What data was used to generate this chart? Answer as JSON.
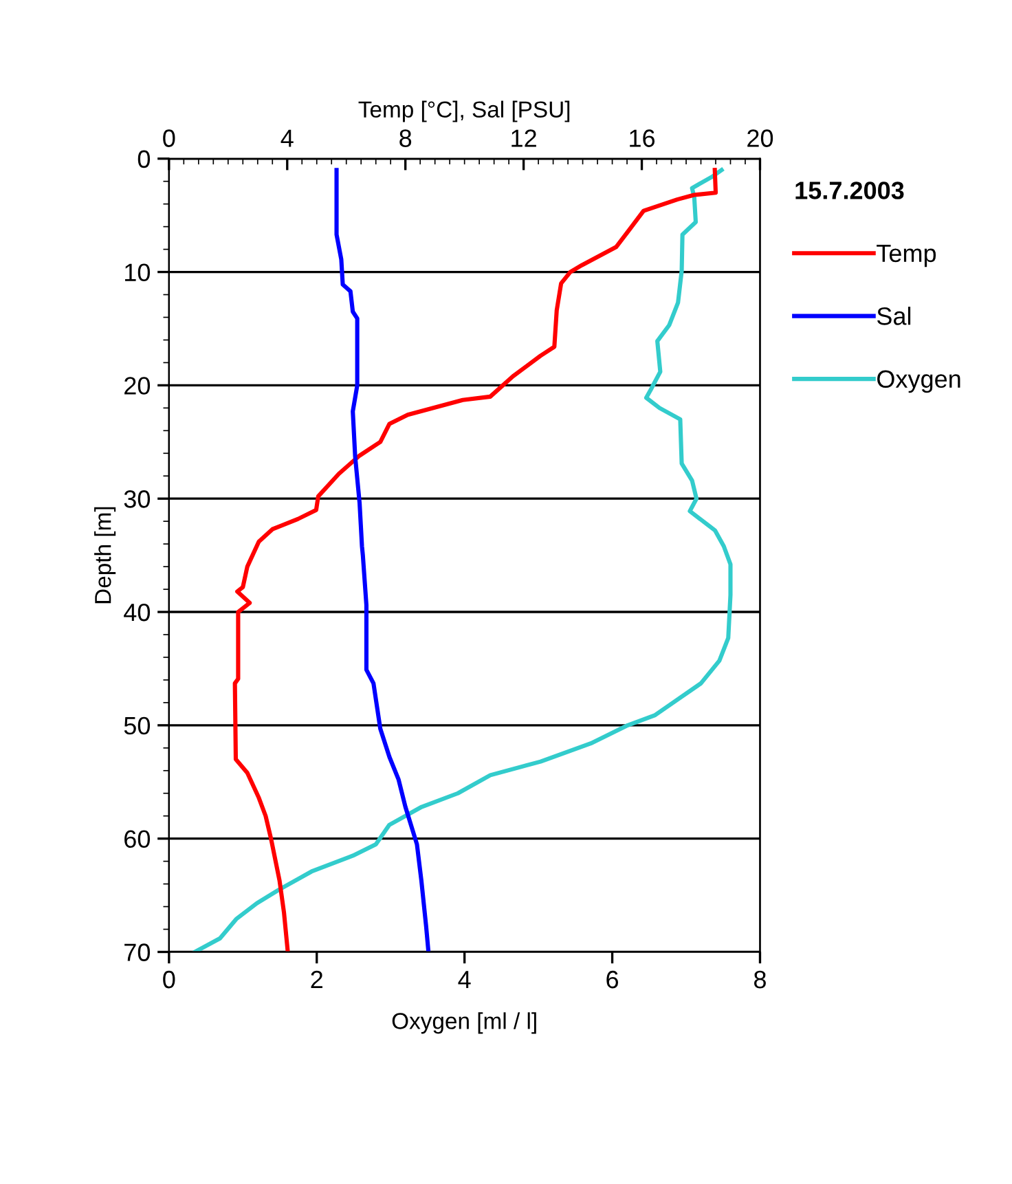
{
  "chart_data": {
    "type": "line",
    "xlabel": "Oxygen [ml / l]",
    "x2label": "Temp [°C], Sal [PSU]",
    "ylabel": "Depth [m]",
    "legend_title": "15.7.2003",
    "legend": "right",
    "grid": "y",
    "xlim": [
      0,
      8
    ],
    "xticks": [
      0,
      2,
      4,
      6,
      8
    ],
    "x2lim": [
      0,
      20
    ],
    "x2ticks": [
      0,
      4,
      8,
      12,
      16,
      20
    ],
    "ylim": [
      70,
      0
    ],
    "yticks": [
      0,
      10,
      20,
      30,
      40,
      50,
      60,
      70
    ],
    "series": [
      {
        "name": "Temp",
        "color": "#ff0000",
        "axis": "x2",
        "x": [
          18.47,
          18.5,
          17.77,
          17.2,
          16.06,
          15.6,
          15.13,
          13.97,
          13.58,
          13.27,
          13.12,
          13.04,
          12.57,
          11.64,
          10.87,
          9.94,
          8.08,
          7.46,
          7.15,
          6.45,
          5.75,
          5.05,
          4.98,
          4.36,
          3.5,
          3.04,
          2.65,
          2.5,
          2.31,
          2.73,
          2.34,
          2.34,
          2.23,
          2.26,
          2.65,
          3.04,
          3.27,
          3.46,
          3.74,
          3.89,
          4.02
        ],
        "values": [
          1.0,
          3.0,
          3.2,
          3.6,
          4.6,
          6.2,
          7.8,
          9.4,
          10.0,
          11.0,
          13.4,
          16.6,
          17.4,
          19.2,
          21.0,
          21.3,
          22.6,
          23.4,
          25.0,
          26.2,
          27.8,
          29.8,
          31.0,
          31.8,
          32.7,
          33.8,
          36.0,
          37.8,
          38.2,
          39.2,
          40.0,
          45.9,
          46.3,
          53.0,
          54.2,
          56.4,
          58.0,
          60.1,
          63.7,
          66.5,
          70.0
        ]
      },
      {
        "name": "Sal",
        "color": "#0000ff",
        "axis": "x2",
        "x": [
          5.67,
          5.67,
          5.83,
          5.88,
          6.14,
          6.22,
          6.37,
          6.37,
          6.22,
          6.3,
          6.45,
          6.53,
          6.56,
          6.68,
          6.68,
          6.92,
          7.15,
          7.46,
          7.77,
          8.0,
          8.39,
          8.54,
          8.7,
          8.78
        ],
        "values": [
          1.0,
          6.7,
          8.9,
          11.1,
          11.7,
          13.5,
          14.1,
          20.0,
          22.3,
          26.3,
          30.4,
          34.2,
          35.0,
          39.4,
          45.1,
          46.3,
          50.3,
          52.8,
          54.8,
          57.2,
          60.5,
          63.7,
          67.7,
          70.0
        ]
      },
      {
        "name": "Oxygen",
        "color": "#33cccc",
        "x": [
          7.48,
          7.35,
          7.08,
          7.11,
          7.13,
          6.95,
          6.94,
          6.89,
          6.77,
          6.61,
          6.65,
          6.52,
          6.46,
          6.64,
          6.92,
          6.94,
          7.08,
          7.14,
          7.05,
          7.39,
          7.51,
          7.6,
          7.6,
          7.57,
          7.45,
          7.2,
          6.58,
          6.21,
          5.71,
          5.03,
          4.35,
          3.91,
          3.42,
          2.98,
          2.8,
          2.49,
          1.93,
          1.49,
          1.19,
          0.91,
          0.69,
          0.35
        ],
        "values": [
          1.0,
          1.6,
          2.6,
          3.4,
          5.6,
          6.7,
          9.9,
          12.7,
          14.7,
          16.1,
          18.8,
          20.4,
          21.1,
          22.0,
          23.0,
          26.9,
          28.4,
          30.0,
          31.1,
          32.8,
          34.2,
          35.8,
          38.5,
          42.3,
          44.3,
          46.3,
          49.1,
          50.0,
          51.6,
          53.2,
          54.4,
          56.0,
          57.2,
          58.8,
          60.5,
          61.5,
          62.9,
          64.5,
          65.7,
          67.1,
          68.8,
          70.0
        ]
      }
    ]
  }
}
